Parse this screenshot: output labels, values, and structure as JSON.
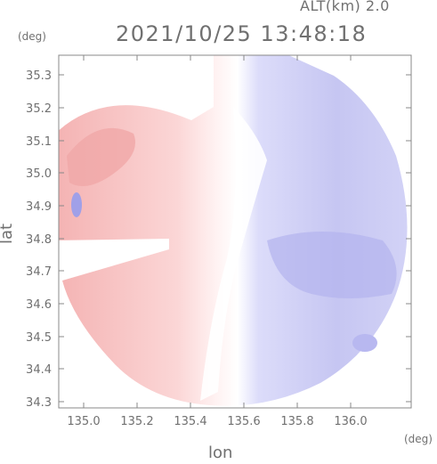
{
  "header": {
    "altitude_label": "ALT(km) 2.0",
    "timestamp": "2021/10/25 13:48:18"
  },
  "axes": {
    "y_unit": "(deg)",
    "x_unit": "(deg)",
    "xlabel": "lon",
    "ylabel": "lat",
    "xlim": [
      134.86,
      136.18
    ],
    "ylim": [
      34.28,
      35.36
    ],
    "xticks": [
      "135.0",
      "135.2",
      "135.4",
      "135.6",
      "135.8",
      "136.0"
    ],
    "yticks": [
      "35.3",
      "35.2",
      "35.1",
      "35.0",
      "34.9",
      "34.8",
      "34.7",
      "34.6",
      "34.5",
      "34.4",
      "34.3"
    ]
  },
  "colors": {
    "frame": "#888888",
    "away": "#f6c0c0",
    "toward": "#c8c8f4",
    "white": "#ffffff"
  }
}
